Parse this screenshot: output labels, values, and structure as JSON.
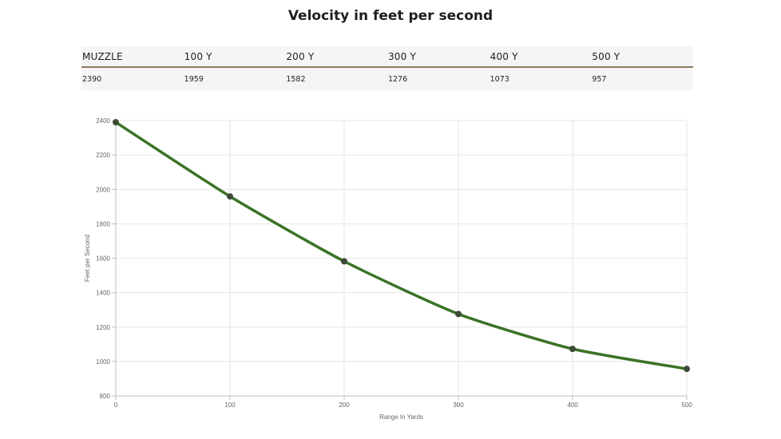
{
  "header": {
    "title": "Velocity in feet per second"
  },
  "table": {
    "columns": [
      "MUZZLE",
      "100 Y",
      "200 Y",
      "300 Y",
      "400 Y",
      "500 Y"
    ],
    "values": [
      "2390",
      "1959",
      "1582",
      "1276",
      "1073",
      "957"
    ]
  },
  "chart_data": {
    "type": "line",
    "title": "",
    "xlabel": "Range In Yards",
    "ylabel": "Feet per Second",
    "x": [
      0,
      100,
      200,
      300,
      400,
      500
    ],
    "series": [
      {
        "values": [
          2390,
          1959,
          1582,
          1276,
          1073,
          957
        ]
      }
    ],
    "xlim": [
      0,
      500
    ],
    "ylim": [
      800,
      2400
    ],
    "xticks": [
      0,
      100,
      200,
      300,
      400,
      500
    ],
    "yticks": [
      800,
      1000,
      1200,
      1400,
      1600,
      1800,
      2000,
      2200,
      2400
    ],
    "grid": true,
    "legend": "none",
    "colors": {
      "line": "#3a7326",
      "point": "#3d4a36",
      "grid": "#e6e6e6",
      "axis": "#bdbdbd",
      "tick_text": "#666666"
    }
  }
}
